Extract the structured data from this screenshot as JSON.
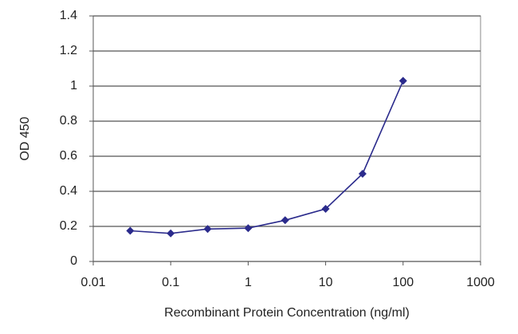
{
  "chart_data": {
    "type": "line",
    "x_label": "Recombinant Protein Concentration (ng/ml)",
    "y_label": "OD 450",
    "x": [
      0.03,
      0.1,
      0.3,
      1,
      3,
      10,
      30,
      100
    ],
    "series": [
      {
        "color": "#2b2b8c",
        "values": [
          0.175,
          0.16,
          0.185,
          0.19,
          0.235,
          0.3,
          0.5,
          1.03
        ]
      }
    ],
    "xscale": "log",
    "xlim": [
      0.01,
      1000
    ],
    "xticks": [
      0.01,
      0.1,
      1,
      10,
      100,
      1000
    ],
    "ylim": [
      0,
      1.4
    ],
    "yticks": [
      0,
      0.2,
      0.4,
      0.6,
      0.8,
      1,
      1.2,
      1.4
    ],
    "grid": true
  }
}
